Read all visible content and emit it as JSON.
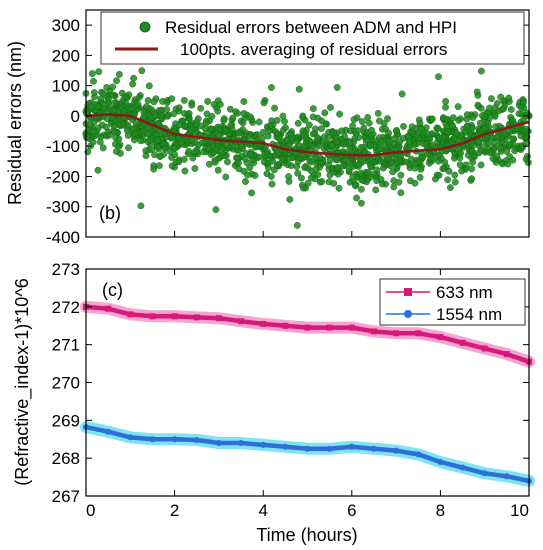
{
  "chart_data": [
    {
      "panel_label": "(b)",
      "type": "scatter",
      "xlim": [
        0,
        10
      ],
      "ylim": [
        -400,
        350
      ],
      "yticks": [
        -400,
        -300,
        -200,
        -100,
        0,
        100,
        200,
        300
      ],
      "ylabel": "Residual errors (nm)",
      "grid": false,
      "legend_position": "top-right",
      "series": [
        {
          "name": "Residual errors between ADM and HPI",
          "kind": "scatter",
          "color": "#1f8a1f",
          "center": {
            "x": [
              0,
              0.5,
              1,
              1.5,
              2,
              2.5,
              3,
              3.5,
              4,
              4.5,
              5,
              5.5,
              6,
              6.5,
              7,
              7.5,
              8,
              8.5,
              9,
              9.5,
              10
            ],
            "y": [
              0,
              5,
              0,
              -30,
              -60,
              -70,
              -80,
              -85,
              -90,
              -110,
              -120,
              -125,
              -130,
              -130,
              -120,
              -115,
              -110,
              -90,
              -60,
              -40,
              -20
            ]
          },
          "spread": 100
        },
        {
          "name": "100pts. averaging of residual errors",
          "kind": "line",
          "color": "#8b1a1a",
          "x": [
            0,
            0.5,
            1,
            1.5,
            2,
            2.5,
            3,
            3.5,
            4,
            4.5,
            5,
            5.5,
            6,
            6.5,
            7,
            7.5,
            8,
            8.5,
            9,
            9.5,
            10
          ],
          "y": [
            0,
            5,
            0,
            -30,
            -60,
            -70,
            -80,
            -85,
            -90,
            -110,
            -120,
            -125,
            -130,
            -130,
            -120,
            -115,
            -110,
            -90,
            -60,
            -40,
            -20
          ]
        }
      ]
    },
    {
      "panel_label": "(c)",
      "type": "line",
      "xlim": [
        0,
        10
      ],
      "ylim": [
        267,
        273
      ],
      "xticks": [
        0,
        2,
        4,
        6,
        8,
        10
      ],
      "yticks": [
        267,
        268,
        269,
        270,
        271,
        272,
        273
      ],
      "xlabel": "Time (hours)",
      "ylabel": "(Refractive_index-1)*10^6",
      "grid": false,
      "legend_position": "top-right",
      "series": [
        {
          "name": "633 nm",
          "color": "#d6197a",
          "halo": "#f4a6cf",
          "marker": "square",
          "x": [
            0,
            0.5,
            1,
            1.5,
            2,
            2.5,
            3,
            3.5,
            4,
            4.5,
            5,
            5.5,
            6,
            6.5,
            7,
            7.5,
            8,
            8.5,
            9,
            9.5,
            10
          ],
          "y": [
            272.0,
            271.95,
            271.8,
            271.75,
            271.75,
            271.72,
            271.7,
            271.62,
            271.55,
            271.5,
            271.45,
            271.45,
            271.45,
            271.35,
            271.3,
            271.3,
            271.2,
            271.05,
            270.9,
            270.75,
            270.55
          ]
        },
        {
          "name": "1554 nm",
          "color": "#2d6fd8",
          "halo": "#7fe3f0",
          "marker": "circle",
          "x": [
            0,
            0.5,
            1,
            1.5,
            2,
            2.5,
            3,
            3.5,
            4,
            4.5,
            5,
            5.5,
            6,
            6.5,
            7,
            7.5,
            8,
            8.5,
            9,
            9.5,
            10
          ],
          "y": [
            268.82,
            268.7,
            268.55,
            268.5,
            268.5,
            268.48,
            268.4,
            268.4,
            268.35,
            268.3,
            268.25,
            268.25,
            268.3,
            268.25,
            268.2,
            268.1,
            267.9,
            267.75,
            267.6,
            267.52,
            267.4
          ]
        }
      ]
    }
  ]
}
